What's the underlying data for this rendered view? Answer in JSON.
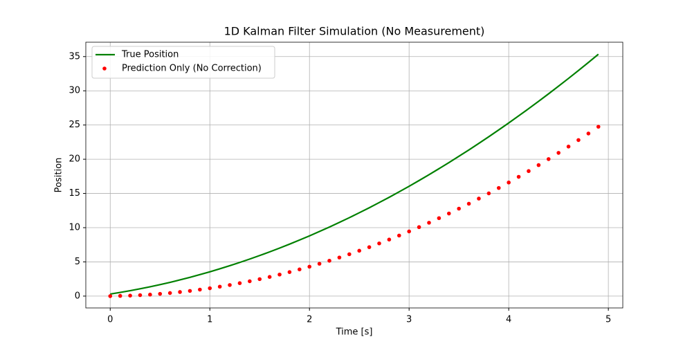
{
  "chart_data": {
    "type": "line",
    "title": "1D Kalman Filter Simulation (No Measurement)",
    "x_label": "Time [s]",
    "y_label": "Position",
    "x": [
      0,
      0.1,
      0.2,
      0.3,
      0.4,
      0.5,
      0.6,
      0.7,
      0.8,
      0.9,
      1.0,
      1.1,
      1.2,
      1.3,
      1.4,
      1.5,
      1.6,
      1.7,
      1.8,
      1.9,
      2.0,
      2.1,
      2.2,
      2.3,
      2.4,
      2.5,
      2.6,
      2.7,
      2.8,
      2.9,
      3.0,
      3.1,
      3.2,
      3.3,
      3.4,
      3.5,
      3.6,
      3.7,
      3.8,
      3.9,
      4.0,
      4.1,
      4.2,
      4.3,
      4.4,
      4.5,
      4.6,
      4.7,
      4.8,
      4.9
    ],
    "series": [
      {
        "name": "True Position",
        "type": "line",
        "color": "#008000",
        "values": [
          0.3,
          0.54,
          0.79,
          1.07,
          1.36,
          1.68,
          2.01,
          2.37,
          2.74,
          3.14,
          3.55,
          3.99,
          4.44,
          4.92,
          5.41,
          5.93,
          6.46,
          7.02,
          7.59,
          8.19,
          8.8,
          9.44,
          10.09,
          10.77,
          11.46,
          12.18,
          12.91,
          13.67,
          14.44,
          15.24,
          16.05,
          16.89,
          17.74,
          18.62,
          19.51,
          20.43,
          21.36,
          22.32,
          23.29,
          24.29,
          25.3,
          26.34,
          27.39,
          28.47,
          29.56,
          30.68,
          31.81,
          32.97,
          34.14,
          35.34
        ]
      },
      {
        "name": "Prediction Only (No Correction)",
        "type": "scatter",
        "color": "#ff0000",
        "values": [
          0,
          0.03,
          0.07,
          0.14,
          0.22,
          0.33,
          0.45,
          0.6,
          0.76,
          0.95,
          1.15,
          1.38,
          1.62,
          1.89,
          2.17,
          2.48,
          2.8,
          3.15,
          3.51,
          3.9,
          4.3,
          4.73,
          5.17,
          5.64,
          6.12,
          6.63,
          7.15,
          7.7,
          8.26,
          8.85,
          9.45,
          10.08,
          10.72,
          11.39,
          12.07,
          12.78,
          13.5,
          14.25,
          15.01,
          15.8,
          16.6,
          17.43,
          18.27,
          19.14,
          20.02,
          20.93,
          21.85,
          22.8,
          23.76,
          24.75
        ]
      }
    ],
    "xlim": [
      -0.245,
      5.145
    ],
    "ylim": [
      -1.73,
      37.1
    ],
    "xticks": [
      0,
      1,
      2,
      3,
      4,
      5
    ],
    "yticks": [
      0,
      5,
      10,
      15,
      20,
      25,
      30,
      35
    ],
    "grid": true,
    "legend": "upper left"
  }
}
